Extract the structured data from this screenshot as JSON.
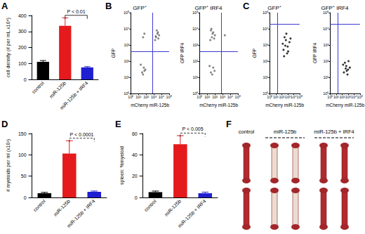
{
  "panel_labels": [
    "A",
    "B",
    "C",
    "D",
    "E",
    "F"
  ],
  "chart_data": [
    {
      "type": "bar",
      "ylabel": "cell density (# per mL x10⁴)",
      "categories": [
        "control",
        "miR-125b",
        "miR-125b + IRF4"
      ],
      "values": [
        110,
        335,
        75
      ],
      "errors": [
        8,
        50,
        5
      ],
      "colors": [
        "#000000",
        "#e41a1c",
        "#1f1fd1"
      ],
      "ylim": [
        0,
        400
      ],
      "yticks": [
        0,
        100,
        200,
        300,
        400
      ],
      "grid": false,
      "annotations": [
        {
          "text": "P < 0.01",
          "between": [
            "miR-125b",
            "miR-125b + IRF4"
          ],
          "line_style": "solid"
        }
      ]
    },
    {
      "type": "scatter",
      "title": "GFP⁺",
      "xlabel": "mCherry miR-125b",
      "ylabel": "GFP",
      "x": [
        2000,
        3000,
        1500,
        5000,
        2500,
        4000,
        3500,
        1800,
        30,
        50,
        20,
        80,
        40,
        60,
        40,
        60
      ],
      "y": [
        3000,
        5000,
        2000,
        4000,
        8000,
        2500,
        6000,
        3500,
        20,
        40,
        60,
        30,
        15,
        25,
        3000,
        5000
      ],
      "color": "#666666",
      "marker": "circle",
      "log": true,
      "xlim": [
        1,
        100000
      ],
      "ylim": [
        1,
        100000
      ],
      "xticks": [
        {
          "value": 1,
          "label": "10⁰"
        },
        {
          "value": 10,
          "label": "10¹"
        },
        {
          "value": 100,
          "label": "10²"
        },
        {
          "value": 1000,
          "label": "10³"
        },
        {
          "value": 10000,
          "label": "10⁴"
        },
        {
          "value": 100000,
          "label": "10⁵"
        }
      ],
      "yticks": [
        {
          "value": 1,
          "label": "10⁰"
        },
        {
          "value": 10,
          "label": "10¹"
        },
        {
          "value": 100,
          "label": "10²"
        },
        {
          "value": 1000,
          "label": "10³"
        },
        {
          "value": 10000,
          "label": "10⁴"
        },
        {
          "value": 100000,
          "label": "10⁵"
        }
      ],
      "quadrant": {
        "x": 700,
        "y": 400
      }
    },
    {
      "type": "scatter",
      "title": "GFP⁺ IRF4",
      "xlabel": "mCherry miR-125b",
      "ylabel": "GFP IRF4",
      "x": [
        40,
        60,
        25,
        100,
        30,
        50,
        80,
        35,
        30,
        60,
        20,
        90,
        45,
        2000
      ],
      "y": [
        3000,
        6000,
        2000,
        4000,
        8000,
        5000,
        2500,
        10000,
        20,
        40,
        50,
        25,
        15,
        4000
      ],
      "color": "#666666",
      "marker": "circle",
      "log": true,
      "xlim": [
        1,
        100000
      ],
      "ylim": [
        1,
        100000
      ],
      "xticks": [
        {
          "value": 1,
          "label": "10⁰"
        },
        {
          "value": 10,
          "label": "10¹"
        },
        {
          "value": 100,
          "label": "10²"
        },
        {
          "value": 1000,
          "label": "10³"
        },
        {
          "value": 10000,
          "label": "10⁴"
        },
        {
          "value": 100000,
          "label": "10⁵"
        }
      ],
      "yticks": [
        {
          "value": 1,
          "label": "10⁰"
        },
        {
          "value": 10,
          "label": "10¹"
        },
        {
          "value": 100,
          "label": "10²"
        },
        {
          "value": 1000,
          "label": "10³"
        },
        {
          "value": 10000,
          "label": "10⁴"
        },
        {
          "value": 100000,
          "label": "10⁵"
        }
      ],
      "quadrant": {
        "x": 700,
        "y": 400
      }
    },
    {
      "type": "scatter",
      "title": "GFP⁺",
      "xlabel": "mCherry miR-125b",
      "ylabel": "GFP",
      "x": [
        200,
        500,
        1000,
        300,
        2000,
        800,
        150,
        600,
        1200,
        400,
        3000,
        250
      ],
      "y": [
        500,
        2000,
        800,
        3000,
        1500,
        300,
        1200,
        5000,
        400,
        900,
        2500,
        200
      ],
      "color": "#000000",
      "marker": "circle",
      "log": true,
      "xlim": [
        1,
        100000
      ],
      "ylim": [
        1,
        100000
      ],
      "xticks": [
        {
          "value": 1,
          "label": "10⁰"
        },
        {
          "value": 10,
          "label": "10¹"
        },
        {
          "value": 100,
          "label": "10²"
        },
        {
          "value": 1000,
          "label": "10³"
        },
        {
          "value": 10000,
          "label": "10⁴"
        },
        {
          "value": 100000,
          "label": "10⁵"
        }
      ],
      "yticks": [
        {
          "value": 1,
          "label": "10⁰"
        },
        {
          "value": 10,
          "label": "10¹"
        },
        {
          "value": 100,
          "label": "10²"
        },
        {
          "value": 1000,
          "label": "10³"
        },
        {
          "value": 10000,
          "label": "10⁴"
        },
        {
          "value": 100000,
          "label": "10⁵"
        }
      ],
      "quadrant": {
        "x": 20,
        "y": 20000
      }
    },
    {
      "type": "scatter",
      "title": "GFP⁺ IRF4",
      "xlabel": "mCherry miR-125b",
      "ylabel": "GFP IRF4",
      "x": [
        200,
        500,
        1000,
        300,
        2000,
        800,
        150,
        600,
        1200,
        400
      ],
      "y": [
        20,
        50,
        30,
        80,
        40,
        15,
        60,
        25,
        100,
        35
      ],
      "color": "#000000",
      "marker": "circle",
      "log": true,
      "xlim": [
        1,
        100000
      ],
      "ylim": [
        1,
        100000
      ],
      "xticks": [
        {
          "value": 1,
          "label": "10⁰"
        },
        {
          "value": 10,
          "label": "10¹"
        },
        {
          "value": 100,
          "label": "10²"
        },
        {
          "value": 1000,
          "label": "10³"
        },
        {
          "value": 10000,
          "label": "10⁴"
        },
        {
          "value": 100000,
          "label": "10⁵"
        }
      ],
      "yticks": [
        {
          "value": 1,
          "label": "10⁰"
        },
        {
          "value": 10,
          "label": "10¹"
        },
        {
          "value": 100,
          "label": "10²"
        },
        {
          "value": 1000,
          "label": "10³"
        },
        {
          "value": 10000,
          "label": "10⁴"
        },
        {
          "value": 100000,
          "label": "10⁵"
        }
      ],
      "quadrant": {
        "x": 20,
        "y": 20000
      }
    },
    {
      "type": "bar",
      "ylabel": "# myeloids per ml (x10³)",
      "categories": [
        "control",
        "miR-125b",
        "miR-125b + IRF4"
      ],
      "values": [
        10,
        103,
        13
      ],
      "errors": [
        2,
        30,
        2
      ],
      "colors": [
        "#000000",
        "#e41a1c",
        "#1f1fd1"
      ],
      "ylim": [
        0,
        150
      ],
      "yticks": [
        0,
        50,
        100,
        150
      ],
      "grid": false,
      "annotations": [
        {
          "text": "P < 0.0001",
          "between": [
            "miR-125b",
            "miR-125b + IRF4"
          ],
          "line_style": "dashed"
        }
      ]
    },
    {
      "type": "bar",
      "ylabel": "spleen: %myeloid",
      "categories": [
        "control",
        "miR-125b",
        "miR-125b + IRF4"
      ],
      "values": [
        5,
        50,
        4
      ],
      "errors": [
        1,
        8,
        1
      ],
      "colors": [
        "#000000",
        "#e41a1c",
        "#1f1fd1"
      ],
      "ylim": [
        0,
        60
      ],
      "yticks": [
        0,
        20,
        40,
        60
      ],
      "grid": false,
      "annotations": [
        {
          "text": "P < 0.005",
          "between": [
            "miR-125b",
            "miR-125b + IRF4"
          ],
          "line_style": "dashed"
        }
      ]
    }
  ],
  "photo": {
    "groups": [
      {
        "label": "control",
        "mice": 1,
        "color": "#b02a30"
      },
      {
        "label": "miR-125b",
        "mice": 2,
        "color": "#ecdccf",
        "line_style": "dashed"
      },
      {
        "label": "miR-125b + IRF4",
        "mice": 2,
        "color": "#b02a30",
        "line_style": "dashed"
      }
    ]
  }
}
